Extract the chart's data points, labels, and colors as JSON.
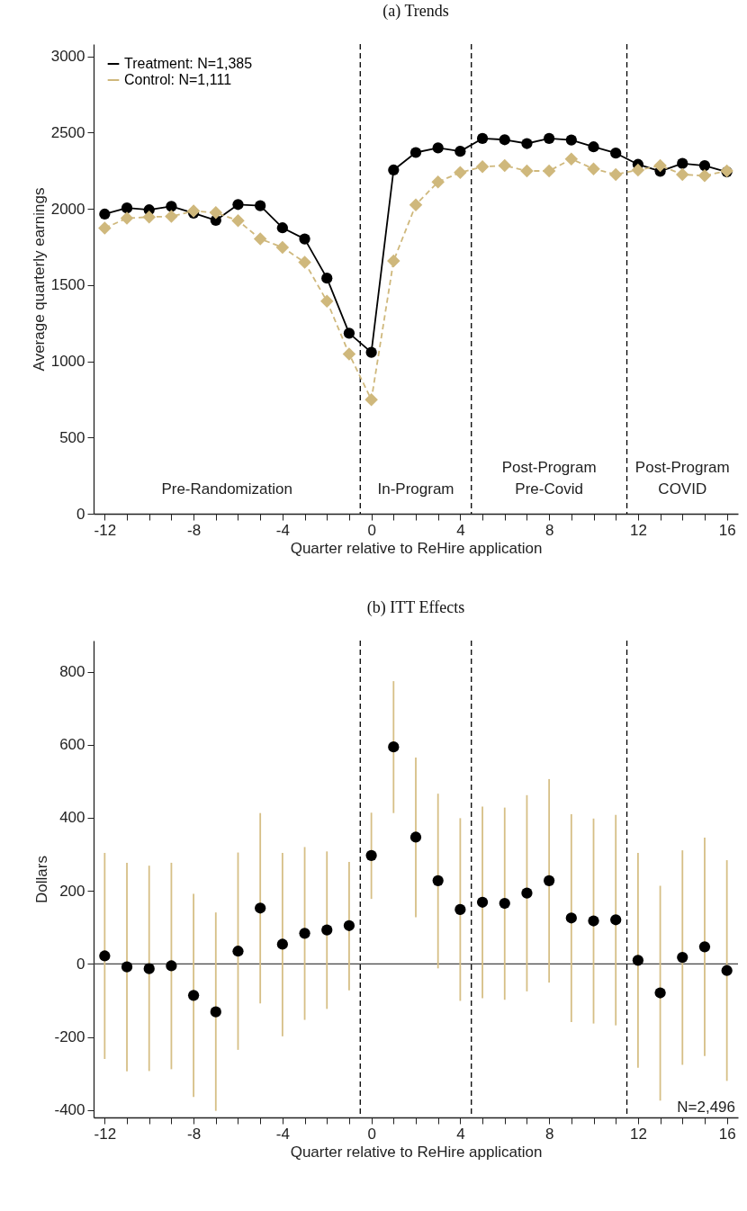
{
  "chart_data": [
    {
      "type": "line",
      "title": "(a) Trends",
      "xlabel": "Quarter relative to ReHire application",
      "ylabel": "Average quarterly earnings",
      "x": [
        -12,
        -11,
        -10,
        -9,
        -8,
        -7,
        -6,
        -5,
        -4,
        -3,
        -2,
        -1,
        0,
        1,
        2,
        3,
        4,
        5,
        6,
        7,
        8,
        9,
        10,
        11,
        12,
        13,
        14,
        15,
        16
      ],
      "series": [
        {
          "name": "Treatment: N=1,385",
          "color": "#000000",
          "marker": "circle",
          "line_style": "solid",
          "values": [
            1965,
            2005,
            1993,
            2016,
            1971,
            1924,
            2028,
            2020,
            1875,
            1802,
            1545,
            1184,
            1058,
            2254,
            2369,
            2399,
            2377,
            2461,
            2453,
            2428,
            2461,
            2451,
            2406,
            2365,
            2291,
            2246,
            2297,
            2283,
            2242
          ]
        },
        {
          "name": "Control: N=1,111",
          "color": "#cfb87c",
          "marker": "diamond",
          "line_style": "dashed",
          "values": [
            1873,
            1938,
            1946,
            1950,
            1985,
            1975,
            1922,
            1802,
            1747,
            1649,
            1394,
            1048,
            748,
            1658,
            2026,
            2176,
            2238,
            2276,
            2283,
            2248,
            2248,
            2326,
            2262,
            2225,
            2254,
            2283,
            2225,
            2217,
            2248
          ]
        }
      ],
      "xlim": [
        -12.5,
        16.5
      ],
      "xticks": [
        -12,
        {
          "value": -11,
          "label": null
        },
        {
          "value": -10,
          "label": null
        },
        {
          "value": -9,
          "label": null
        },
        -8,
        {
          "value": -7,
          "label": null
        },
        {
          "value": -6,
          "label": null
        },
        {
          "value": -5,
          "label": null
        },
        -4,
        {
          "value": -3,
          "label": null
        },
        {
          "value": -2,
          "label": null
        },
        {
          "value": -1,
          "label": null
        },
        0,
        {
          "value": 1,
          "label": null
        },
        {
          "value": 2,
          "label": null
        },
        {
          "value": 3,
          "label": null
        },
        4,
        {
          "value": 5,
          "label": null
        },
        {
          "value": 6,
          "label": null
        },
        {
          "value": 7,
          "label": null
        },
        8,
        {
          "value": 9,
          "label": null
        },
        {
          "value": 10,
          "label": null
        },
        {
          "value": 11,
          "label": null
        },
        12,
        {
          "value": 13,
          "label": null
        },
        {
          "value": 14,
          "label": null
        },
        {
          "value": 15,
          "label": null
        },
        16
      ],
      "ylim": [
        0,
        3080
      ],
      "yticks": [
        0,
        500,
        1000,
        1500,
        2000,
        2500,
        3000
      ],
      "ref_lines": [
        {
          "axis": "x",
          "value": -0.5,
          "color": "#000000",
          "line_style": "dashed"
        },
        {
          "axis": "x",
          "value": 4.5,
          "color": "#000000",
          "line_style": "dashed"
        },
        {
          "axis": "x",
          "value": 11.5,
          "color": "#000000",
          "line_style": "dashed"
        }
      ],
      "annotations": [
        "Pre-Randomization",
        "In-Program",
        "Post-Program\nPre-Covid",
        "Post-Program\nCOVID"
      ],
      "legend": "top left",
      "grid": false
    },
    {
      "type": "scatter",
      "title": "(b) ITT Effects",
      "xlabel": "Quarter relative to ReHire application",
      "ylabel": "Dollars",
      "x": [
        -12,
        -11,
        -10,
        -9,
        -8,
        -7,
        -6,
        -5,
        -4,
        -3,
        -2,
        -1,
        0,
        1,
        2,
        3,
        4,
        5,
        6,
        7,
        8,
        9,
        10,
        11,
        12,
        13,
        14,
        15,
        16
      ],
      "series": [
        {
          "color": "#000000",
          "marker": "circle",
          "values": [
            22,
            -8,
            -13,
            -5,
            -86,
            -131,
            35,
            153,
            54,
            84,
            93,
            105,
            297,
            594,
            347,
            228,
            149,
            169,
            166,
            194,
            228,
            126,
            118,
            121,
            10,
            -79,
            18,
            47,
            -18
          ],
          "errors": [
            [
              -260,
              304
            ],
            [
              -294,
              277
            ],
            [
              -293,
              269
            ],
            [
              -288,
              277
            ],
            [
              -364,
              192
            ],
            [
              -402,
              141
            ],
            [
              -235,
              305
            ],
            [
              -108,
              413
            ],
            [
              -198,
              304
            ],
            [
              -153,
              320
            ],
            [
              -123,
              308
            ],
            [
              -72,
              279
            ],
            [
              178,
              414
            ],
            [
              413,
              774
            ],
            [
              128,
              565
            ],
            [
              -12,
              466
            ],
            [
              -101,
              399
            ],
            [
              -94,
              431
            ],
            [
              -98,
              428
            ],
            [
              -75,
              462
            ],
            [
              -51,
              506
            ],
            [
              -159,
              410
            ],
            [
              -163,
              398
            ],
            [
              -168,
              408
            ],
            [
              -284,
              304
            ],
            [
              -374,
              214
            ],
            [
              -276,
              311
            ],
            [
              -252,
              346
            ],
            [
              -320,
              284
            ]
          ]
        }
      ],
      "xlim": [
        -12.5,
        16.5
      ],
      "xticks": [
        -12,
        {
          "value": -11,
          "label": null
        },
        {
          "value": -10,
          "label": null
        },
        {
          "value": -9,
          "label": null
        },
        -8,
        {
          "value": -7,
          "label": null
        },
        {
          "value": -6,
          "label": null
        },
        {
          "value": -5,
          "label": null
        },
        -4,
        {
          "value": -3,
          "label": null
        },
        {
          "value": -2,
          "label": null
        },
        {
          "value": -1,
          "label": null
        },
        0,
        {
          "value": 1,
          "label": null
        },
        {
          "value": 2,
          "label": null
        },
        {
          "value": 3,
          "label": null
        },
        4,
        {
          "value": 5,
          "label": null
        },
        {
          "value": 6,
          "label": null
        },
        {
          "value": 7,
          "label": null
        },
        8,
        {
          "value": 9,
          "label": null
        },
        {
          "value": 10,
          "label": null
        },
        {
          "value": 11,
          "label": null
        },
        12,
        {
          "value": 13,
          "label": null
        },
        {
          "value": 14,
          "label": null
        },
        {
          "value": 15,
          "label": null
        },
        16
      ],
      "ylim": [
        -420,
        885
      ],
      "yticks": [
        -400,
        -200,
        0,
        200,
        400,
        600,
        800
      ],
      "ref_lines": [
        {
          "axis": "x",
          "value": -0.5,
          "color": "#000000",
          "line_style": "dashed"
        },
        {
          "axis": "x",
          "value": 4.5,
          "color": "#000000",
          "line_style": "dashed"
        },
        {
          "axis": "x",
          "value": 11.5,
          "color": "#000000",
          "line_style": "dashed"
        },
        {
          "axis": "y",
          "value": 0,
          "color": "#444444",
          "line_style": "solid"
        }
      ],
      "annotations": [
        "N=2,496"
      ],
      "legend": false,
      "grid": false
    }
  ]
}
